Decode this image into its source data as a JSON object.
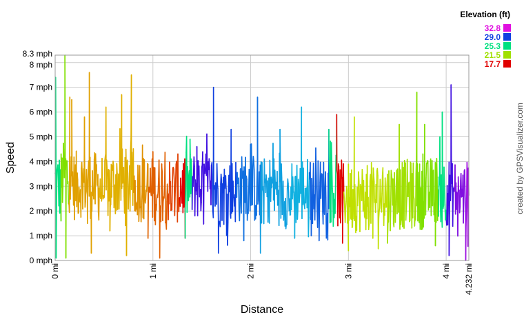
{
  "chart_data": {
    "type": "line",
    "xlabel": "Distance",
    "ylabel": "Speed",
    "x_unit": "mi",
    "y_unit": "mph",
    "xlim": [
      0,
      4.232
    ],
    "ylim": [
      0,
      8.3
    ],
    "x_ticks": [
      {
        "value": 0,
        "label": "0 mi"
      },
      {
        "value": 1,
        "label": "1 mi"
      },
      {
        "value": 2,
        "label": "2 mi"
      },
      {
        "value": 3,
        "label": "3 mi"
      },
      {
        "value": 4,
        "label": "4 mi"
      },
      {
        "value": 4.232,
        "label": "4.232 mi"
      }
    ],
    "y_ticks": [
      {
        "value": 0,
        "label": "0 mph"
      },
      {
        "value": 1,
        "label": "1 mph"
      },
      {
        "value": 2,
        "label": "2 mph"
      },
      {
        "value": 3,
        "label": "3 mph"
      },
      {
        "value": 4,
        "label": "4 mph"
      },
      {
        "value": 5,
        "label": "5 mph"
      },
      {
        "value": 6,
        "label": "6 mph"
      },
      {
        "value": 7,
        "label": "7 mph"
      },
      {
        "value": 8,
        "label": "8 mph"
      },
      {
        "value": 8.3,
        "label": "8.3 mph"
      }
    ],
    "grid": true,
    "legend": {
      "title": "Elevation (ft)",
      "placement": "top-right",
      "entries": [
        {
          "label": "32.8",
          "color": "#e010e0"
        },
        {
          "label": "29.0",
          "color": "#1040e0"
        },
        {
          "label": "25.3",
          "color": "#00e080"
        },
        {
          "label": "21.5",
          "color": "#a0e000"
        },
        {
          "label": "17.7",
          "color": "#e00000"
        }
      ]
    },
    "credit": "created by GPSVisualizer.com",
    "color_segments": [
      {
        "x": 0.0,
        "color": "#00e080"
      },
      {
        "x": 0.06,
        "color": "#80e000"
      },
      {
        "x": 0.14,
        "color": "#e0a000"
      },
      {
        "x": 0.45,
        "color": "#e0b000"
      },
      {
        "x": 0.8,
        "color": "#e09000"
      },
      {
        "x": 0.95,
        "color": "#e06000"
      },
      {
        "x": 1.15,
        "color": "#e04000"
      },
      {
        "x": 1.27,
        "color": "#e00000"
      },
      {
        "x": 1.33,
        "color": "#00e080"
      },
      {
        "x": 1.4,
        "color": "#4010e0"
      },
      {
        "x": 1.6,
        "color": "#1040e0"
      },
      {
        "x": 1.85,
        "color": "#1070e0"
      },
      {
        "x": 2.1,
        "color": "#10a0e0"
      },
      {
        "x": 2.4,
        "color": "#10b0e0"
      },
      {
        "x": 2.6,
        "color": "#1060e0"
      },
      {
        "x": 2.8,
        "color": "#00e080"
      },
      {
        "x": 2.88,
        "color": "#e00000"
      },
      {
        "x": 2.95,
        "color": "#c0e000"
      },
      {
        "x": 3.4,
        "color": "#a0e000"
      },
      {
        "x": 3.7,
        "color": "#80e000"
      },
      {
        "x": 3.92,
        "color": "#00e080"
      },
      {
        "x": 4.0,
        "color": "#4010e0"
      },
      {
        "x": 4.08,
        "color": "#8010e0"
      },
      {
        "x": 4.2,
        "color": "#a010e0"
      }
    ],
    "baseline_speed": [
      [
        0.0,
        3.1
      ],
      [
        0.05,
        3.0
      ],
      [
        0.1,
        3.6
      ],
      [
        0.2,
        3.0
      ],
      [
        0.3,
        3.2
      ],
      [
        0.4,
        3.0
      ],
      [
        0.5,
        2.9
      ],
      [
        0.6,
        3.1
      ],
      [
        0.7,
        3.2
      ],
      [
        0.8,
        3.0
      ],
      [
        0.9,
        2.9
      ],
      [
        1.0,
        2.8
      ],
      [
        1.1,
        2.9
      ],
      [
        1.2,
        2.8
      ],
      [
        1.3,
        3.0
      ],
      [
        1.4,
        3.0
      ],
      [
        1.5,
        3.1
      ],
      [
        1.6,
        3.0
      ],
      [
        1.7,
        2.7
      ],
      [
        1.8,
        2.8
      ],
      [
        1.9,
        2.9
      ],
      [
        2.0,
        3.0
      ],
      [
        2.1,
        2.7
      ],
      [
        2.2,
        2.9
      ],
      [
        2.3,
        2.8
      ],
      [
        2.4,
        2.6
      ],
      [
        2.5,
        2.9
      ],
      [
        2.6,
        2.8
      ],
      [
        2.7,
        2.7
      ],
      [
        2.8,
        2.9
      ],
      [
        2.9,
        2.7
      ],
      [
        3.0,
        2.6
      ],
      [
        3.1,
        2.5
      ],
      [
        3.2,
        2.6
      ],
      [
        3.3,
        2.6
      ],
      [
        3.4,
        2.6
      ],
      [
        3.5,
        2.6
      ],
      [
        3.6,
        2.7
      ],
      [
        3.7,
        2.6
      ],
      [
        3.8,
        2.7
      ],
      [
        3.9,
        2.9
      ],
      [
        4.0,
        2.8
      ],
      [
        4.1,
        2.7
      ],
      [
        4.2,
        2.6
      ],
      [
        4.232,
        2.7
      ]
    ],
    "spikes": [
      [
        0.005,
        7.4
      ],
      [
        0.01,
        0.1
      ],
      [
        0.06,
        1.6
      ],
      [
        0.1,
        8.3
      ],
      [
        0.11,
        0.1
      ],
      [
        0.15,
        6.6
      ],
      [
        0.17,
        6.5
      ],
      [
        0.3,
        5.8
      ],
      [
        0.33,
        1.5
      ],
      [
        0.35,
        7.6
      ],
      [
        0.37,
        0.3
      ],
      [
        0.52,
        6.2
      ],
      [
        0.56,
        1.2
      ],
      [
        0.68,
        6.7
      ],
      [
        0.73,
        0.2
      ],
      [
        0.78,
        7.5
      ],
      [
        0.95,
        0.9
      ],
      [
        1.0,
        4.4
      ],
      [
        1.07,
        0.1
      ],
      [
        1.09,
        3.9
      ],
      [
        1.33,
        0.9
      ],
      [
        1.38,
        4.9
      ],
      [
        1.45,
        4.6
      ],
      [
        1.62,
        7.0
      ],
      [
        1.67,
        0.3
      ],
      [
        1.8,
        5.3
      ],
      [
        1.93,
        0.8
      ],
      [
        2.0,
        4.7
      ],
      [
        2.07,
        6.6
      ],
      [
        2.1,
        0.3
      ],
      [
        2.18,
        1.8
      ],
      [
        2.3,
        5.3
      ],
      [
        2.45,
        0.9
      ],
      [
        2.52,
        6.2
      ],
      [
        2.62,
        1.0
      ],
      [
        2.7,
        0.8
      ],
      [
        2.8,
        5.3
      ],
      [
        2.88,
        5.9
      ],
      [
        2.94,
        0.7
      ],
      [
        3.0,
        0.4
      ],
      [
        3.06,
        5.8
      ],
      [
        3.25,
        0.9
      ],
      [
        3.4,
        0.7
      ],
      [
        3.52,
        5.5
      ],
      [
        3.7,
        6.8
      ],
      [
        3.78,
        5.5
      ],
      [
        3.89,
        0.6
      ],
      [
        3.96,
        6.0
      ],
      [
        4.03,
        0.2
      ],
      [
        4.05,
        7.1
      ],
      [
        4.2,
        0.0
      ],
      [
        4.22,
        3.5
      ]
    ]
  }
}
